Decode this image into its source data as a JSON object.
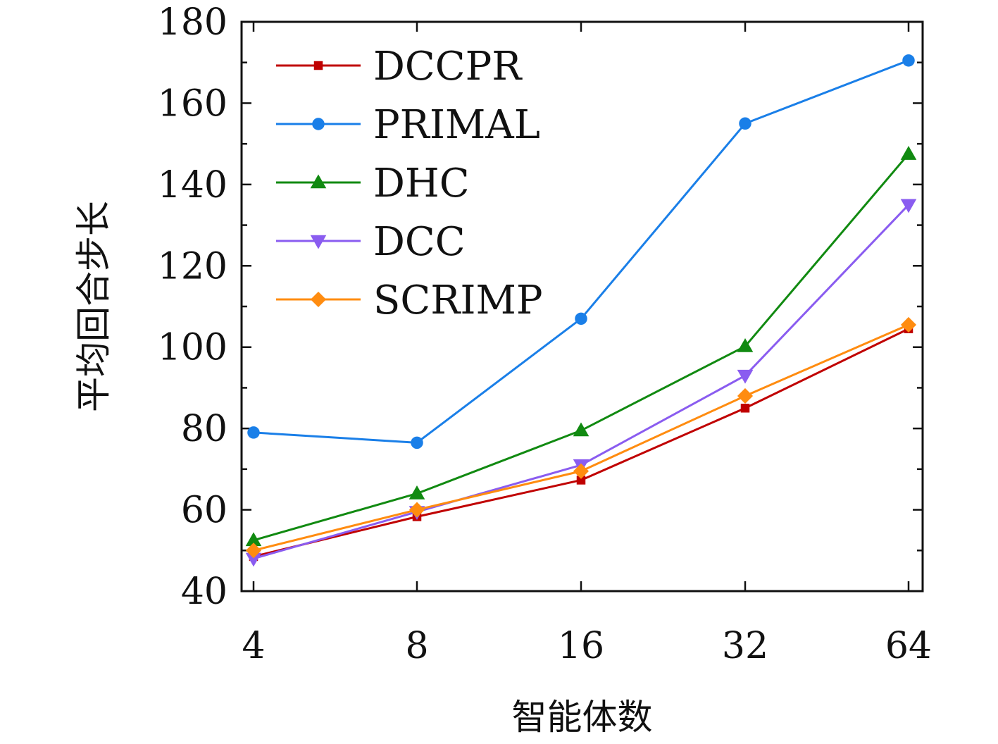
{
  "chart_data": {
    "type": "line",
    "x": [
      4,
      8,
      16,
      32,
      64
    ],
    "xticks": [
      "4",
      "8",
      "16",
      "32",
      "64"
    ],
    "xlabel": "智能体数",
    "ylabel": "平均回合步长",
    "ylim": [
      40,
      180
    ],
    "yticks": [
      40,
      60,
      80,
      100,
      120,
      140,
      160,
      180
    ],
    "grid": false,
    "legend": "top-left",
    "series": [
      {
        "name": "DCCPR",
        "color": "#c00000",
        "marker": "square",
        "values": [
          48.5,
          58.3,
          67.3,
          85.0,
          104.5
        ]
      },
      {
        "name": "PRIMAL",
        "color": "#1a7fe8",
        "marker": "circle",
        "values": [
          79.0,
          76.5,
          107.0,
          155.0,
          170.5
        ]
      },
      {
        "name": "DHC",
        "color": "#118a11",
        "marker": "triangle-up",
        "values": [
          52.5,
          64.0,
          79.5,
          100.2,
          147.5
        ]
      },
      {
        "name": "DCC",
        "color": "#8a5cf0",
        "marker": "triangle-down",
        "values": [
          48.0,
          59.5,
          71.0,
          93.0,
          135.0
        ]
      },
      {
        "name": "SCRIMP",
        "color": "#ff8c10",
        "marker": "diamond",
        "values": [
          50.0,
          60.0,
          69.5,
          88.0,
          105.5
        ]
      }
    ]
  }
}
